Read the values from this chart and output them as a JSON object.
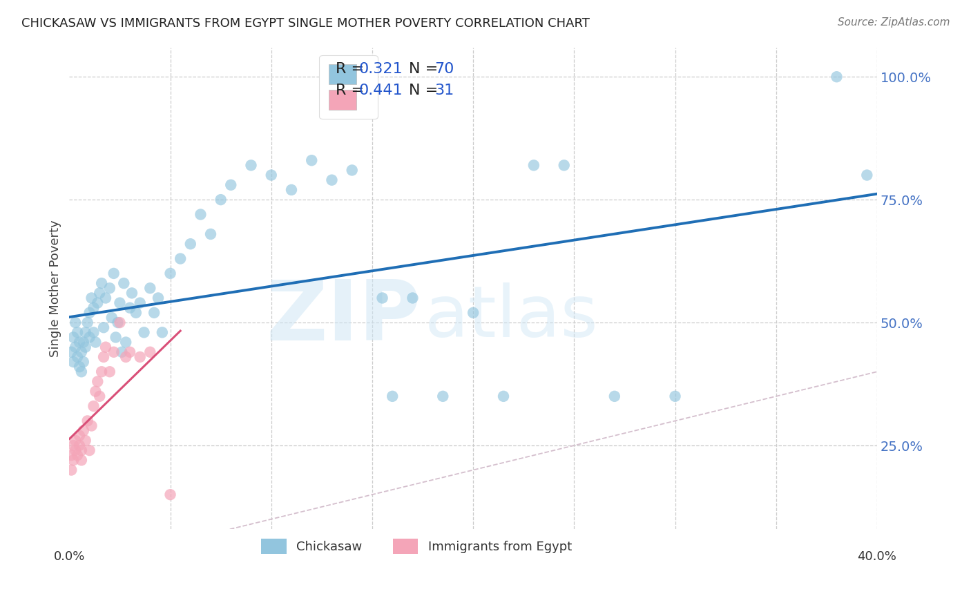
{
  "title": "CHICKASAW VS IMMIGRANTS FROM EGYPT SINGLE MOTHER POVERTY CORRELATION CHART",
  "source": "Source: ZipAtlas.com",
  "ylabel": "Single Mother Poverty",
  "legend_label1": "Chickasaw",
  "legend_label2": "Immigrants from Egypt",
  "watermark_zip": "ZIP",
  "watermark_atlas": "atlas",
  "blue_scatter_color": "#92c5de",
  "pink_scatter_color": "#f4a5b8",
  "blue_line_color": "#1f6eb5",
  "pink_line_color": "#d94f78",
  "diag_line_color": "#d0b8c8",
  "grid_color": "#cccccc",
  "legend_text_color": "#1a1a2e",
  "legend_value_color": "#2255cc",
  "right_axis_color": "#4472c4",
  "R_blue": 0.321,
  "N_blue": 70,
  "R_pink": 0.441,
  "N_pink": 31,
  "xlim": [
    0.0,
    0.4
  ],
  "ylim": [
    0.08,
    1.06
  ],
  "ytick_vals": [
    0.25,
    0.5,
    0.75,
    1.0
  ],
  "ytick_labels": [
    "25.0%",
    "50.0%",
    "75.0%",
    "100.0%"
  ],
  "xtick_labels": [
    "0.0%",
    "40.0%"
  ],
  "figsize": [
    14.06,
    8.92
  ],
  "dpi": 100,
  "chickasaw_x": [
    0.001,
    0.002,
    0.002,
    0.003,
    0.003,
    0.004,
    0.004,
    0.005,
    0.005,
    0.006,
    0.006,
    0.007,
    0.007,
    0.008,
    0.008,
    0.009,
    0.01,
    0.01,
    0.011,
    0.012,
    0.012,
    0.013,
    0.014,
    0.015,
    0.016,
    0.017,
    0.018,
    0.02,
    0.021,
    0.022,
    0.023,
    0.024,
    0.025,
    0.026,
    0.027,
    0.028,
    0.03,
    0.031,
    0.033,
    0.035,
    0.037,
    0.04,
    0.042,
    0.044,
    0.046,
    0.05,
    0.055,
    0.06,
    0.065,
    0.07,
    0.075,
    0.08,
    0.09,
    0.1,
    0.11,
    0.12,
    0.13,
    0.14,
    0.155,
    0.16,
    0.17,
    0.185,
    0.2,
    0.215,
    0.23,
    0.245,
    0.27,
    0.3,
    0.38,
    0.395
  ],
  "chickasaw_y": [
    0.44,
    0.42,
    0.47,
    0.45,
    0.5,
    0.43,
    0.48,
    0.41,
    0.46,
    0.4,
    0.44,
    0.42,
    0.46,
    0.45,
    0.48,
    0.5,
    0.47,
    0.52,
    0.55,
    0.48,
    0.53,
    0.46,
    0.54,
    0.56,
    0.58,
    0.49,
    0.55,
    0.57,
    0.51,
    0.6,
    0.47,
    0.5,
    0.54,
    0.44,
    0.58,
    0.46,
    0.53,
    0.56,
    0.52,
    0.54,
    0.48,
    0.57,
    0.52,
    0.55,
    0.48,
    0.6,
    0.63,
    0.66,
    0.72,
    0.68,
    0.75,
    0.78,
    0.82,
    0.8,
    0.77,
    0.83,
    0.79,
    0.81,
    0.55,
    0.35,
    0.55,
    0.35,
    0.52,
    0.35,
    0.82,
    0.82,
    0.35,
    0.35,
    1.0,
    0.8
  ],
  "egypt_x": [
    0.001,
    0.001,
    0.002,
    0.002,
    0.003,
    0.003,
    0.004,
    0.005,
    0.005,
    0.006,
    0.006,
    0.007,
    0.008,
    0.009,
    0.01,
    0.011,
    0.012,
    0.013,
    0.014,
    0.015,
    0.016,
    0.017,
    0.018,
    0.02,
    0.022,
    0.025,
    0.028,
    0.03,
    0.035,
    0.04,
    0.05
  ],
  "egypt_y": [
    0.2,
    0.23,
    0.22,
    0.25,
    0.24,
    0.26,
    0.23,
    0.25,
    0.27,
    0.22,
    0.24,
    0.28,
    0.26,
    0.3,
    0.24,
    0.29,
    0.33,
    0.36,
    0.38,
    0.35,
    0.4,
    0.43,
    0.45,
    0.4,
    0.44,
    0.5,
    0.43,
    0.44,
    0.43,
    0.44,
    0.15
  ]
}
